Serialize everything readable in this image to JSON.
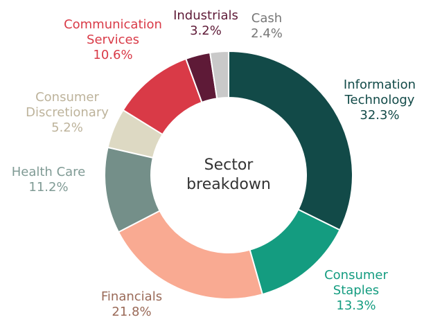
{
  "chart_data": {
    "type": "donut",
    "title": "Sector breakdown",
    "series": [
      {
        "name": "Information Technology",
        "color": "#124a48",
        "label_color": "#124a48",
        "value": 32.3,
        "value_label": "32.3%"
      },
      {
        "name": "Consumer Staples",
        "color": "#149c80",
        "label_color": "#149c80",
        "value": 13.3,
        "value_label": "13.3%"
      },
      {
        "name": "Financials",
        "color": "#f9aa92",
        "label_color": "#9a6a58",
        "value": 21.8,
        "value_label": "21.8%"
      },
      {
        "name": "Health Care",
        "color": "#748f89",
        "label_color": "#7f9a94",
        "value": 11.2,
        "value_label": "11.2%"
      },
      {
        "name": "Consumer Discretionary",
        "color": "#ddd9c3",
        "label_color": "#bdb39b",
        "value": 5.2,
        "value_label": "5.2%"
      },
      {
        "name": "Communication Services",
        "color": "#d93a47",
        "label_color": "#d93a47",
        "value": 10.6,
        "value_label": "10.6%"
      },
      {
        "name": "Industrials",
        "color": "#5e1a37",
        "label_color": "#5e1a37",
        "value": 3.2,
        "value_label": "3.2%"
      },
      {
        "name": "Cash",
        "color": "#c9c9c9",
        "label_color": "#777777",
        "value": 2.4,
        "value_label": "2.4%"
      }
    ]
  }
}
